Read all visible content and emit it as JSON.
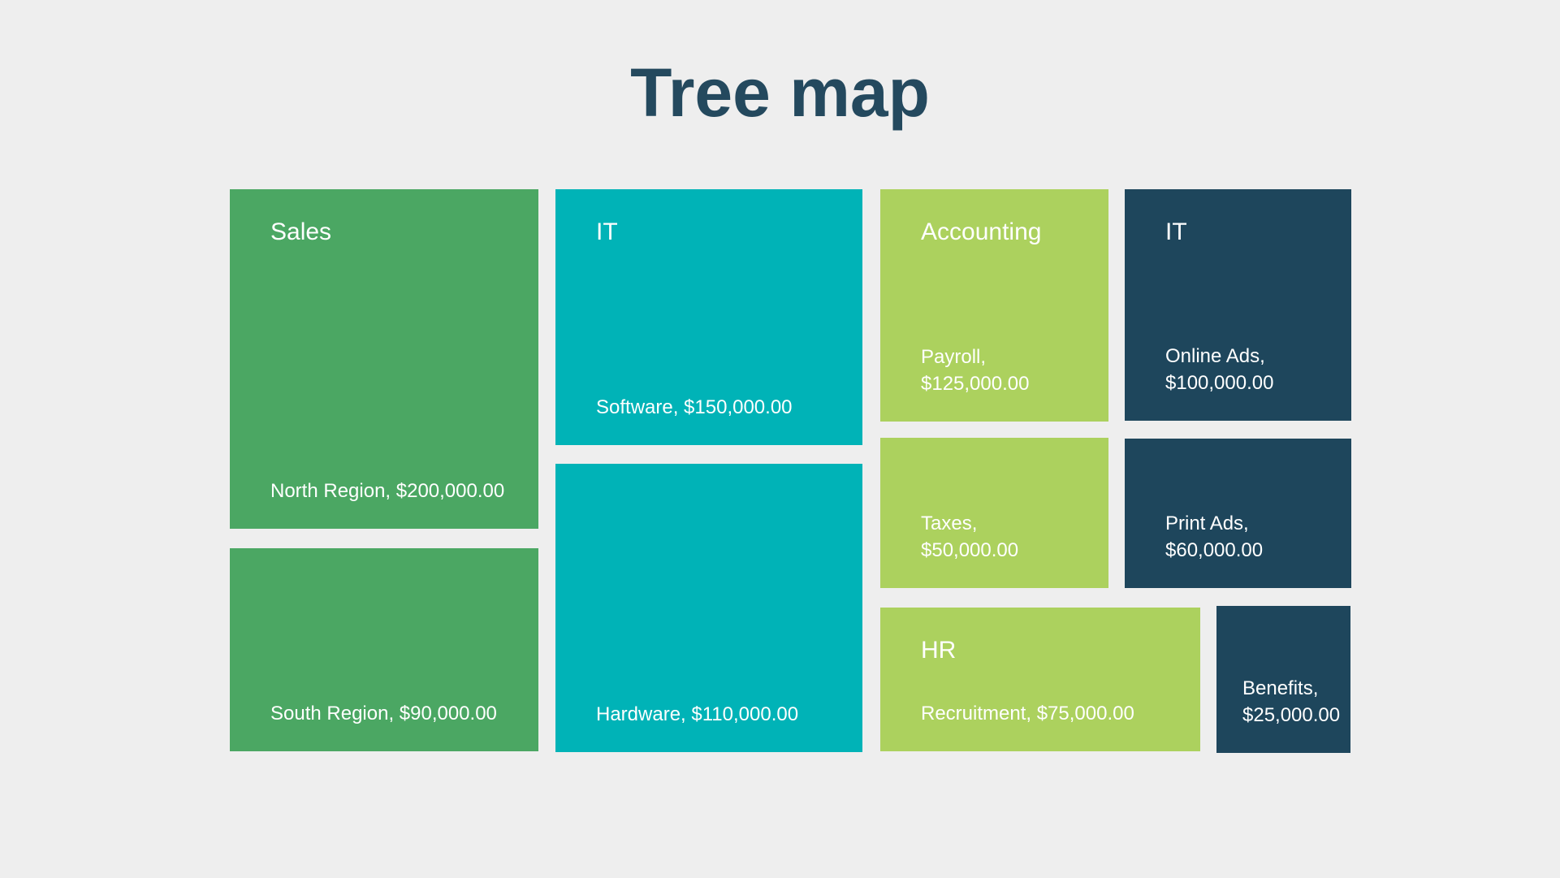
{
  "title": "Tree map",
  "colors": {
    "background": "#eeeeee",
    "title_text": "#24495E",
    "cell_text": "#ffffff",
    "green": "#4BA763",
    "teal": "#00B3B7",
    "lime": "#ACD15E",
    "navy": "#1E465C"
  },
  "chart_data": {
    "type": "treemap",
    "title": "Tree map",
    "legend": "none",
    "layout": "four columns of rectangles, labels top-left, values bottom-left",
    "groups": [
      {
        "name": "Sales",
        "color": "#4BA763",
        "items": [
          {
            "label": "North Region",
            "value": 200000,
            "display": "North Region, $200,000.00"
          },
          {
            "label": "South Region",
            "value": 90000,
            "display": "South Region, $90,000.00"
          }
        ]
      },
      {
        "name": "IT",
        "color": "#00B3B7",
        "items": [
          {
            "label": "Software",
            "value": 150000,
            "display": "Software, $150,000.00"
          },
          {
            "label": "Hardware",
            "value": 110000,
            "display": "Hardware, $110,000.00"
          }
        ]
      },
      {
        "name": "Accounting",
        "color": "#ACD15E",
        "items": [
          {
            "label": "Payroll",
            "value": 125000,
            "display": "Payroll,\n$125,000.00"
          },
          {
            "label": "Taxes",
            "value": 50000,
            "display": "Taxes,\n$50,000.00"
          }
        ]
      },
      {
        "name": "HR",
        "color": "#ACD15E",
        "items": [
          {
            "label": "Recruitment",
            "value": 75000,
            "display": "Recruitment, $75,000.00"
          }
        ]
      },
      {
        "name": "IT",
        "color": "#1E465C",
        "items": [
          {
            "label": "Online Ads",
            "value": 100000,
            "display": "Online Ads,\n$100,000.00"
          },
          {
            "label": "Print Ads",
            "value": 60000,
            "display": "Print Ads,\n$60,000.00"
          },
          {
            "label": "Benefits",
            "value": 25000,
            "display": "Benefits,\n$25,000.00"
          }
        ]
      }
    ]
  }
}
